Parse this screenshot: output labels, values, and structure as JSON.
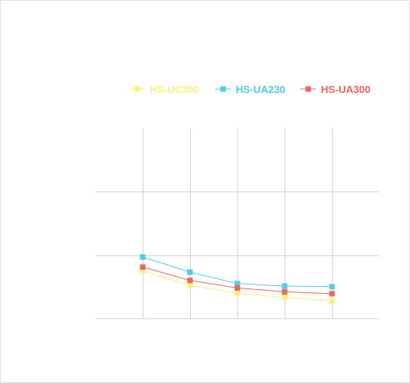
{
  "chart_data": {
    "type": "line",
    "title": "",
    "xlabel": "",
    "ylabel": "",
    "x": [
      1,
      2,
      3,
      4,
      5
    ],
    "xlim": [
      0,
      6
    ],
    "ylim": [
      0,
      30
    ],
    "grid": true,
    "legend_position": "top",
    "series": [
      {
        "name": "HS-UC300",
        "color": "#fff07a",
        "values": [
          7.5,
          5.2,
          4.0,
          3.3,
          2.8
        ]
      },
      {
        "name": "HS-UA230",
        "color": "#4fcdf5",
        "values": [
          9.7,
          7.3,
          5.5,
          5.1,
          5.0
        ]
      },
      {
        "name": "HS-UA300",
        "color": "#f2645f",
        "values": [
          8.1,
          6.0,
          4.8,
          4.2,
          3.9
        ]
      }
    ]
  }
}
